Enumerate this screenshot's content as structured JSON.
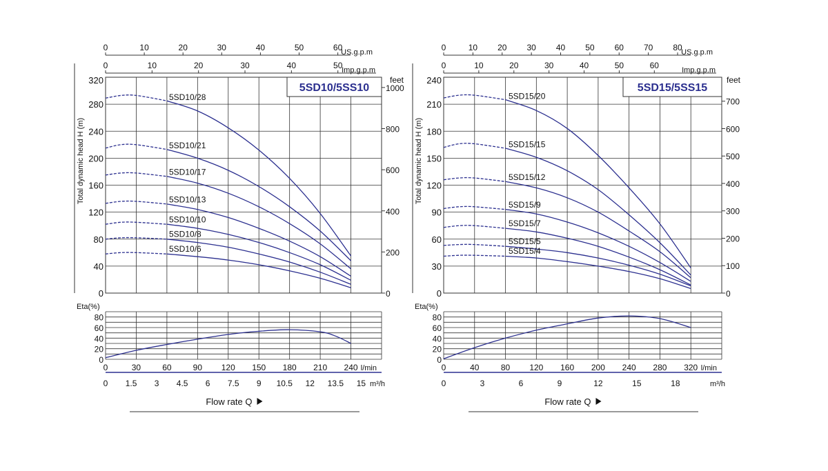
{
  "colors": {
    "curve": "#2b2f8f",
    "grid": "#333333",
    "title": "#2b2f8f"
  },
  "chart_data": [
    {
      "type": "line",
      "title": "5SD10/5SS10",
      "ylabel": "Total dynamic head H (m)",
      "ylabel_right": "feet",
      "xlabel": "Flow rate Q",
      "eta_label": "Eta(%)",
      "x_unit_lmin": "l/min",
      "x_unit_m3h": "m³/h",
      "us_gpm_label": "US.g.p.m",
      "imp_gpm_label": "Imp.g.p.m",
      "xlim_lmin": [
        0,
        270
      ],
      "ylim": [
        0,
        320
      ],
      "y_ticks": [
        0,
        40,
        80,
        120,
        160,
        200,
        240,
        280,
        320
      ],
      "feet_ticks": [
        0,
        200,
        400,
        600,
        800,
        1000
      ],
      "x_ticks_lmin": [
        0,
        30,
        60,
        90,
        120,
        150,
        180,
        210,
        240
      ],
      "x_ticks_m3h": [
        "0",
        "1.5",
        "3",
        "4.5",
        "6",
        "7.5",
        "9",
        "10.5",
        "12",
        "13.5",
        "15"
      ],
      "us_gpm_ticks": [
        0,
        10,
        20,
        30,
        40,
        50,
        60
      ],
      "imp_gpm_ticks": [
        0,
        10,
        20,
        30,
        40,
        50
      ],
      "eta_ylim": [
        0,
        90
      ],
      "eta_ticks": [
        0,
        20,
        40,
        60,
        80
      ],
      "series": [
        {
          "name": "5SD10/28",
          "shutoff": 292,
          "pts": [
            [
              0,
              289
            ],
            [
              15,
              293
            ],
            [
              30,
              293
            ],
            [
              60,
              285
            ],
            [
              90,
              270
            ],
            [
              120,
              245
            ],
            [
              150,
              212
            ],
            [
              180,
              170
            ],
            [
              210,
              118
            ],
            [
              240,
              55
            ]
          ]
        },
        {
          "name": "5SD10/21",
          "shutoff": 220,
          "pts": [
            [
              0,
              215
            ],
            [
              15,
              220
            ],
            [
              30,
              220
            ],
            [
              60,
              213
            ],
            [
              90,
              200
            ],
            [
              120,
              182
            ],
            [
              150,
              158
            ],
            [
              180,
              128
            ],
            [
              210,
              92
            ],
            [
              240,
              48
            ]
          ]
        },
        {
          "name": "5SD10/17",
          "shutoff": 178,
          "pts": [
            [
              0,
              175
            ],
            [
              15,
              178
            ],
            [
              30,
              178
            ],
            [
              60,
              173
            ],
            [
              90,
              163
            ],
            [
              120,
              148
            ],
            [
              150,
              128
            ],
            [
              180,
              103
            ],
            [
              210,
              73
            ],
            [
              240,
              36
            ]
          ]
        },
        {
          "name": "5SD10/13",
          "shutoff": 136,
          "pts": [
            [
              0,
              133
            ],
            [
              15,
              136
            ],
            [
              30,
              136
            ],
            [
              60,
              132
            ],
            [
              90,
              124
            ],
            [
              120,
              112
            ],
            [
              150,
              96
            ],
            [
              180,
              77
            ],
            [
              210,
              54
            ],
            [
              240,
              25
            ]
          ]
        },
        {
          "name": "5SD10/10",
          "shutoff": 105,
          "pts": [
            [
              0,
              102
            ],
            [
              15,
              105
            ],
            [
              30,
              105
            ],
            [
              60,
              102
            ],
            [
              90,
              96
            ],
            [
              120,
              87
            ],
            [
              150,
              75
            ],
            [
              180,
              60
            ],
            [
              210,
              42
            ],
            [
              240,
              19
            ]
          ]
        },
        {
          "name": "5SD10/8",
          "shutoff": 82,
          "pts": [
            [
              0,
              80
            ],
            [
              15,
              82
            ],
            [
              30,
              82
            ],
            [
              60,
              80
            ],
            [
              90,
              75
            ],
            [
              120,
              68
            ],
            [
              150,
              58
            ],
            [
              180,
              46
            ],
            [
              210,
              31
            ],
            [
              240,
              13
            ]
          ]
        },
        {
          "name": "5SD10/6",
          "shutoff": 60,
          "pts": [
            [
              0,
              58
            ],
            [
              15,
              60
            ],
            [
              30,
              60
            ],
            [
              60,
              58
            ],
            [
              90,
              54
            ],
            [
              120,
              49
            ],
            [
              150,
              42
            ],
            [
              180,
              33
            ],
            [
              210,
              22
            ],
            [
              240,
              8
            ]
          ]
        }
      ],
      "eta": [
        [
          0,
          3
        ],
        [
          30,
          17
        ],
        [
          60,
          28
        ],
        [
          90,
          38
        ],
        [
          120,
          47
        ],
        [
          150,
          53
        ],
        [
          180,
          56
        ],
        [
          210,
          52
        ],
        [
          225,
          44
        ],
        [
          240,
          30
        ]
      ]
    },
    {
      "type": "line",
      "title": "5SD15/5SS15",
      "ylabel": "Total dynamic head H (m)",
      "ylabel_right": "feet",
      "xlabel": "Flow rate Q",
      "eta_label": "Eta(%)",
      "x_unit_lmin": "l/min",
      "x_unit_m3h": "m³/h",
      "us_gpm_label": "US.g.p.m",
      "imp_gpm_label": "Imp.g.p.m",
      "xlim_lmin": [
        0,
        360
      ],
      "ylim": [
        0,
        240
      ],
      "y_ticks": [
        0,
        30,
        60,
        90,
        120,
        150,
        180,
        210,
        240
      ],
      "feet_ticks": [
        0,
        100,
        200,
        300,
        400,
        500,
        600,
        700
      ],
      "x_ticks_lmin": [
        0,
        40,
        80,
        120,
        160,
        200,
        240,
        280,
        320
      ],
      "x_ticks_m3h": [
        "0",
        "3",
        "6",
        "9",
        "12",
        "15",
        "18"
      ],
      "us_gpm_ticks": [
        0,
        10,
        20,
        30,
        40,
        50,
        60,
        70,
        80
      ],
      "imp_gpm_ticks": [
        0,
        10,
        20,
        30,
        40,
        50,
        60
      ],
      "eta_ylim": [
        0,
        90
      ],
      "eta_ticks": [
        0,
        20,
        40,
        60,
        80
      ],
      "series": [
        {
          "name": "5SD15/20",
          "shutoff": 220,
          "pts": [
            [
              0,
              217
            ],
            [
              20,
              220
            ],
            [
              40,
              220
            ],
            [
              80,
              215
            ],
            [
              120,
              203
            ],
            [
              160,
              183
            ],
            [
              200,
              153
            ],
            [
              240,
              117
            ],
            [
              280,
              77
            ],
            [
              320,
              28
            ]
          ]
        },
        {
          "name": "5SD15/15",
          "shutoff": 166,
          "pts": [
            [
              0,
              162
            ],
            [
              20,
              166
            ],
            [
              40,
              166
            ],
            [
              80,
              161
            ],
            [
              120,
              151
            ],
            [
              160,
              136
            ],
            [
              200,
              115
            ],
            [
              240,
              87
            ],
            [
              280,
              56
            ],
            [
              320,
              20
            ]
          ]
        },
        {
          "name": "5SD15/12",
          "shutoff": 128,
          "pts": [
            [
              0,
              126
            ],
            [
              20,
              128
            ],
            [
              40,
              128
            ],
            [
              80,
              124
            ],
            [
              120,
              117
            ],
            [
              160,
              106
            ],
            [
              200,
              90
            ],
            [
              240,
              69
            ],
            [
              280,
              46
            ],
            [
              320,
              17
            ]
          ]
        },
        {
          "name": "5SD15/9",
          "shutoff": 96,
          "pts": [
            [
              0,
              94
            ],
            [
              20,
              96
            ],
            [
              40,
              96
            ],
            [
              80,
              93
            ],
            [
              120,
              88
            ],
            [
              160,
              79
            ],
            [
              200,
              67
            ],
            [
              240,
              52
            ],
            [
              280,
              34
            ],
            [
              320,
              13
            ]
          ]
        },
        {
          "name": "5SD15/7",
          "shutoff": 75,
          "pts": [
            [
              0,
              73
            ],
            [
              20,
              75
            ],
            [
              40,
              75
            ],
            [
              80,
              72
            ],
            [
              120,
              68
            ],
            [
              160,
              61
            ],
            [
              200,
              52
            ],
            [
              240,
              40
            ],
            [
              280,
              26
            ],
            [
              320,
              9
            ]
          ]
        },
        {
          "name": "5SD15/5",
          "shutoff": 54,
          "pts": [
            [
              0,
              53
            ],
            [
              20,
              54
            ],
            [
              40,
              54
            ],
            [
              80,
              52
            ],
            [
              120,
              49
            ],
            [
              160,
              45
            ],
            [
              200,
              39
            ],
            [
              240,
              31
            ],
            [
              280,
              21
            ],
            [
              320,
              8
            ]
          ]
        },
        {
          "name": "5SD15/4",
          "shutoff": 42,
          "pts": [
            [
              0,
              41
            ],
            [
              20,
              42
            ],
            [
              40,
              42
            ],
            [
              80,
              41
            ],
            [
              120,
              39
            ],
            [
              160,
              35
            ],
            [
              200,
              30
            ],
            [
              240,
              24
            ],
            [
              280,
              16
            ],
            [
              320,
              5
            ]
          ]
        }
      ],
      "eta": [
        [
          0,
          1
        ],
        [
          40,
          22
        ],
        [
          80,
          40
        ],
        [
          120,
          55
        ],
        [
          160,
          67
        ],
        [
          200,
          78
        ],
        [
          240,
          82
        ],
        [
          280,
          77
        ],
        [
          320,
          60
        ]
      ]
    }
  ]
}
